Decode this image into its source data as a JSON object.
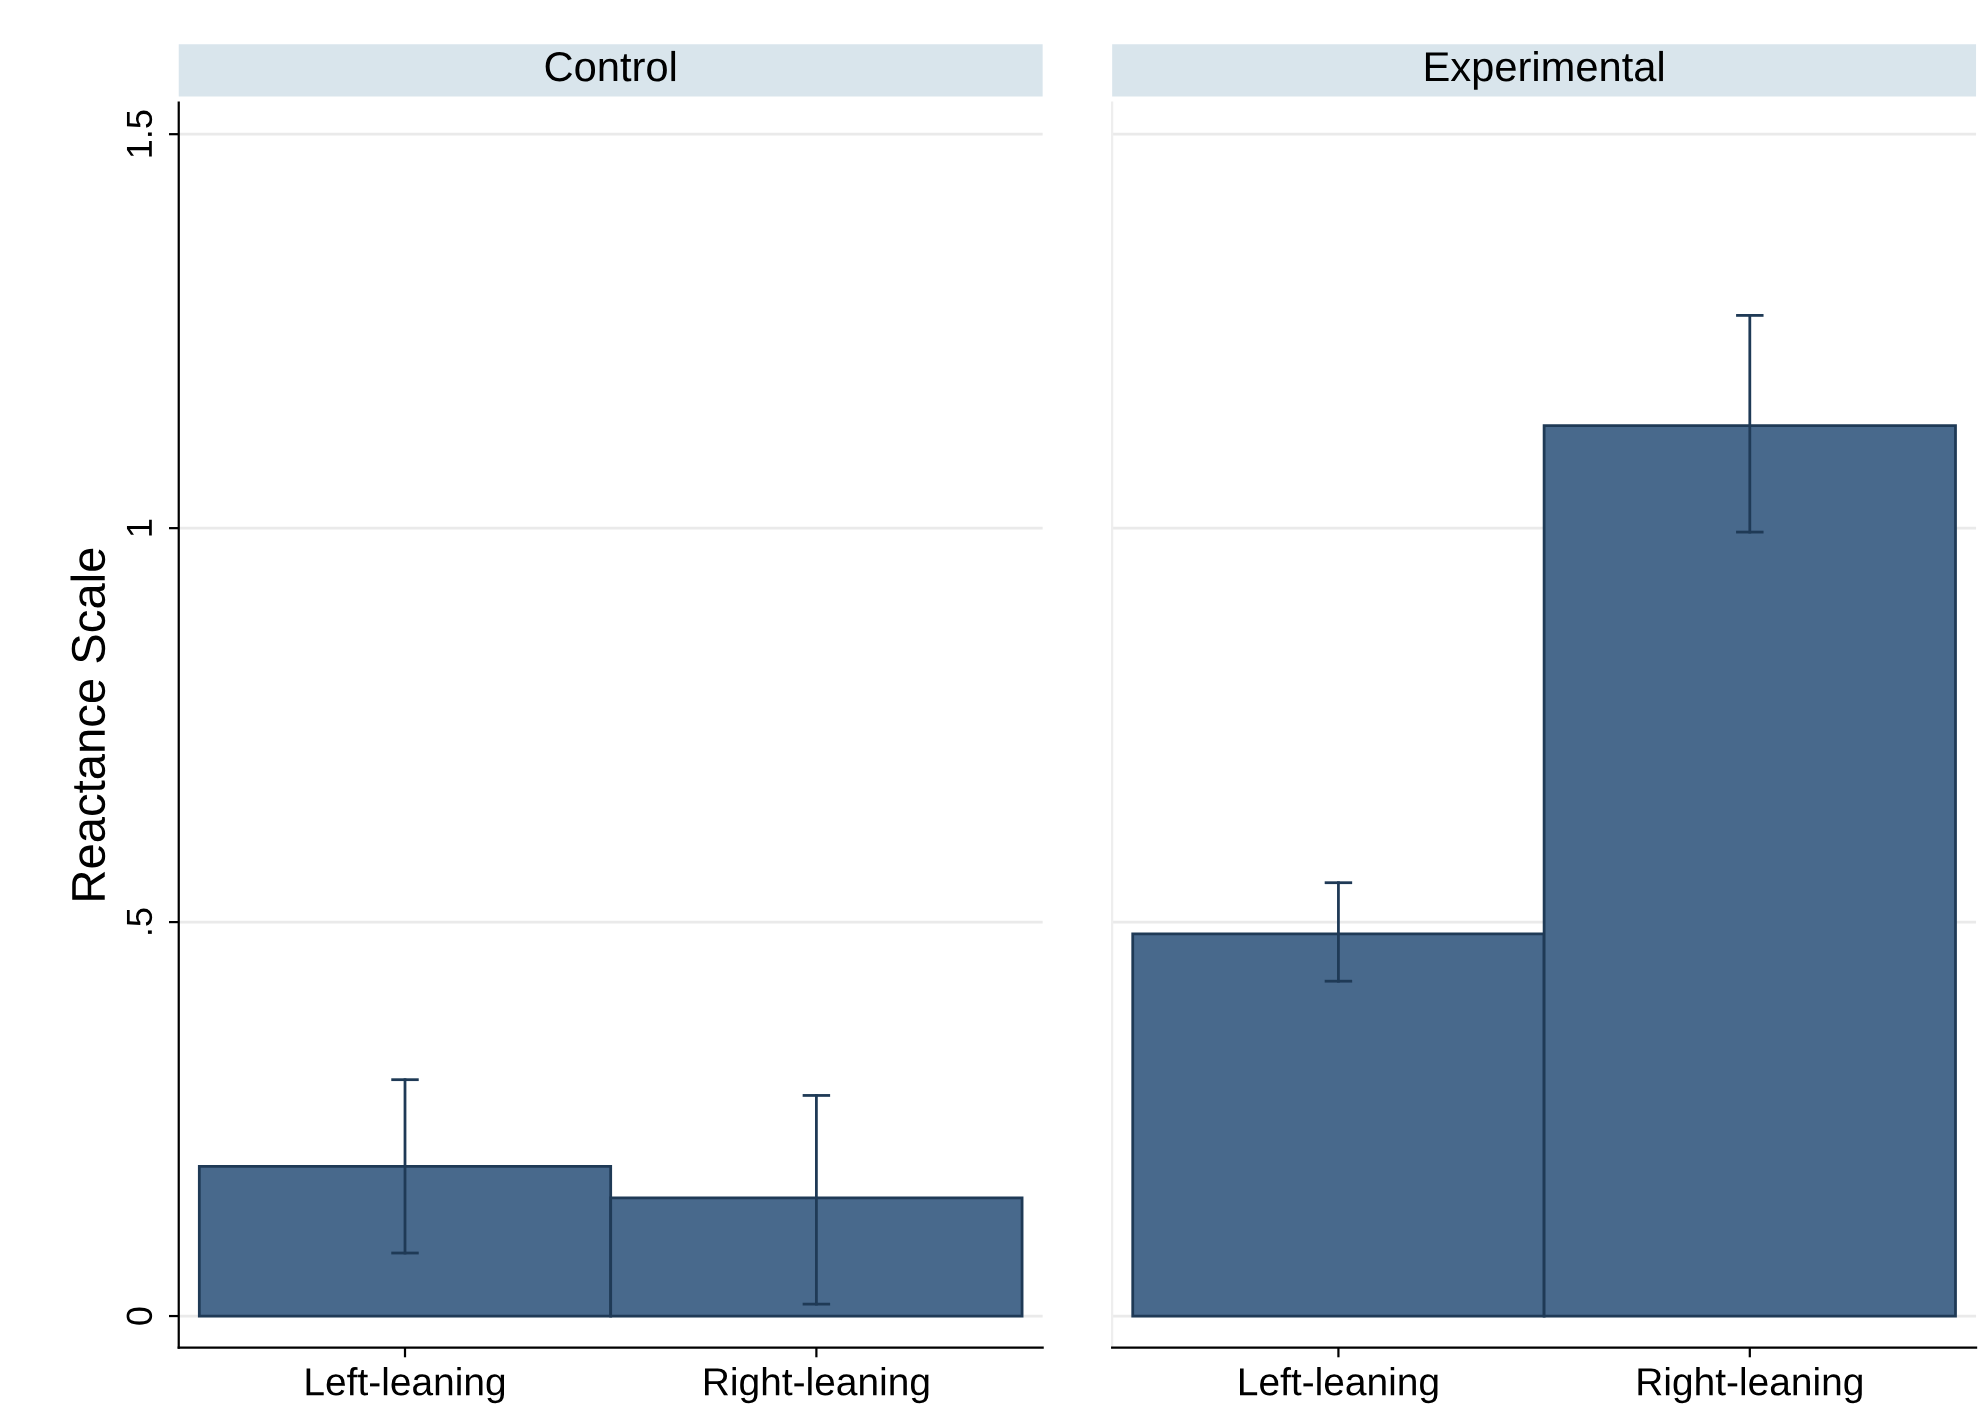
{
  "chart_data": [
    {
      "type": "bar",
      "title": "Control",
      "ylabel": "Reactance Scale",
      "categories": [
        "Left-leaning",
        "Right-leaning"
      ],
      "series": [
        {
          "color": "#48698c",
          "values": [
            0.19,
            0.15
          ],
          "errors": [
            [
              0.08,
              0.3
            ],
            [
              0.015,
              0.28
            ]
          ]
        }
      ],
      "ylim": [
        -0.04,
        1.54
      ],
      "yticks": [
        0,
        {
          "value": 0.5,
          "label": ".5"
        },
        1,
        1.5
      ],
      "grid": "y",
      "legend": false
    },
    {
      "type": "bar",
      "title": "Experimental",
      "categories": [
        "Left-leaning",
        "Right-leaning"
      ],
      "series": [
        {
          "color": "#48698c",
          "values": [
            0.485,
            1.13
          ],
          "errors": [
            [
              0.425,
              0.55
            ],
            [
              0.995,
              1.27
            ]
          ]
        }
      ],
      "ylim": [
        -0.04,
        1.54
      ],
      "yticks": [
        {
          "value": 0,
          "label": null
        },
        {
          "value": 0.5,
          "label": null
        },
        {
          "value": 1,
          "label": null
        },
        {
          "value": 1.5,
          "label": null
        }
      ],
      "grid": "y",
      "legend": false,
      "tick_labels": "x"
    }
  ]
}
